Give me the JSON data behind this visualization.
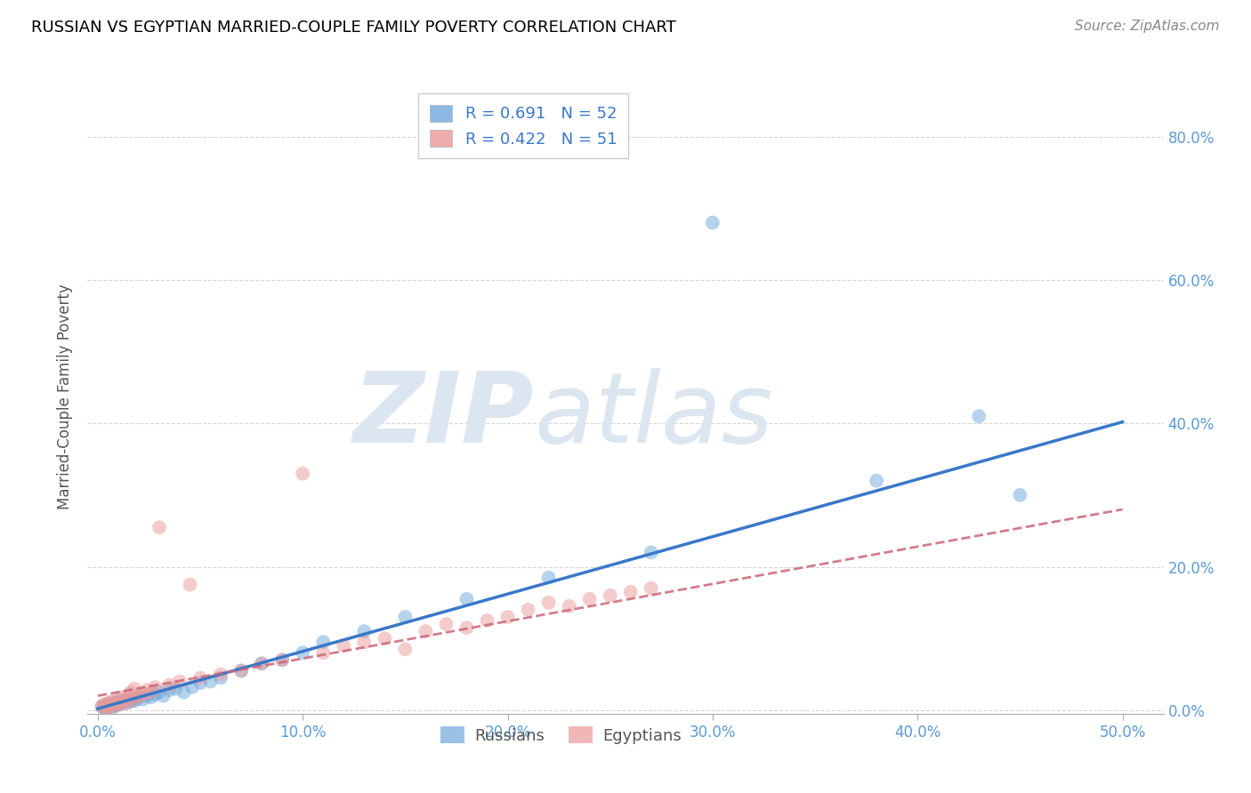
{
  "title": "RUSSIAN VS EGYPTIAN MARRIED-COUPLE FAMILY POVERTY CORRELATION CHART",
  "source": "Source: ZipAtlas.com",
  "ylabel": "Married-Couple Family Poverty",
  "xlabel_ticks": [
    "0.0%",
    "10.0%",
    "20.0%",
    "30.0%",
    "40.0%",
    "50.0%"
  ],
  "xlabel_vals": [
    0.0,
    0.1,
    0.2,
    0.3,
    0.4,
    0.5
  ],
  "ylabel_ticks": [
    "0.0%",
    "20.0%",
    "40.0%",
    "60.0%",
    "80.0%"
  ],
  "ylabel_vals": [
    0.0,
    0.2,
    0.4,
    0.6,
    0.8
  ],
  "xlim": [
    -0.005,
    0.52
  ],
  "ylim": [
    -0.005,
    0.88
  ],
  "russian_R": 0.691,
  "russian_N": 52,
  "egyptian_R": 0.422,
  "egyptian_N": 51,
  "russian_color": "#6fa8dc",
  "egyptian_color": "#ea9999",
  "russian_line_color": "#3a78c9",
  "egyptian_line_color": "#cc6677",
  "watermark_ZIP": "ZIP",
  "watermark_atlas": "atlas",
  "watermark_color": "#dce6f0",
  "background_color": "#ffffff",
  "grid_color": "#cccccc",
  "title_color": "#000000",
  "axis_label_color": "#555555",
  "tick_label_color": "#5b9bd5",
  "source_color": "#888888",
  "legend_russian_label": "R = 0.691   N = 52",
  "legend_egyptian_label": "R = 0.422   N = 51",
  "russians_label": "Russians",
  "egyptians_label": "Egyptians",
  "russian_slope": 0.8,
  "russian_intercept": 0.002,
  "egyptian_slope": 0.52,
  "egyptian_intercept": 0.02,
  "rus_x": [
    0.002,
    0.003,
    0.004,
    0.004,
    0.005,
    0.005,
    0.006,
    0.006,
    0.007,
    0.007,
    0.008,
    0.008,
    0.009,
    0.01,
    0.01,
    0.011,
    0.012,
    0.013,
    0.014,
    0.015,
    0.016,
    0.017,
    0.018,
    0.019,
    0.02,
    0.022,
    0.024,
    0.026,
    0.028,
    0.03,
    0.032,
    0.035,
    0.038,
    0.042,
    0.046,
    0.05,
    0.055,
    0.06,
    0.07,
    0.08,
    0.09,
    0.1,
    0.11,
    0.13,
    0.15,
    0.18,
    0.22,
    0.27,
    0.3,
    0.38,
    0.43,
    0.45
  ],
  "rus_y": [
    0.005,
    0.003,
    0.006,
    0.002,
    0.007,
    0.004,
    0.005,
    0.008,
    0.006,
    0.009,
    0.005,
    0.007,
    0.01,
    0.008,
    0.012,
    0.009,
    0.011,
    0.013,
    0.01,
    0.014,
    0.012,
    0.015,
    0.013,
    0.016,
    0.018,
    0.015,
    0.02,
    0.018,
    0.022,
    0.025,
    0.02,
    0.028,
    0.03,
    0.025,
    0.032,
    0.038,
    0.04,
    0.045,
    0.055,
    0.065,
    0.07,
    0.08,
    0.095,
    0.11,
    0.13,
    0.155,
    0.185,
    0.22,
    0.68,
    0.32,
    0.41,
    0.3
  ],
  "egy_x": [
    0.002,
    0.003,
    0.004,
    0.004,
    0.005,
    0.005,
    0.006,
    0.007,
    0.008,
    0.009,
    0.01,
    0.011,
    0.012,
    0.013,
    0.014,
    0.015,
    0.016,
    0.017,
    0.018,
    0.02,
    0.022,
    0.024,
    0.026,
    0.028,
    0.03,
    0.035,
    0.04,
    0.045,
    0.05,
    0.06,
    0.07,
    0.08,
    0.09,
    0.1,
    0.11,
    0.12,
    0.13,
    0.14,
    0.15,
    0.16,
    0.17,
    0.18,
    0.19,
    0.2,
    0.21,
    0.22,
    0.23,
    0.24,
    0.25,
    0.26,
    0.27
  ],
  "egy_y": [
    0.005,
    0.008,
    0.003,
    0.006,
    0.01,
    0.004,
    0.007,
    0.012,
    0.005,
    0.009,
    0.015,
    0.008,
    0.018,
    0.012,
    0.01,
    0.02,
    0.025,
    0.015,
    0.03,
    0.018,
    0.022,
    0.028,
    0.025,
    0.032,
    0.255,
    0.035,
    0.04,
    0.175,
    0.045,
    0.05,
    0.055,
    0.065,
    0.07,
    0.33,
    0.08,
    0.09,
    0.095,
    0.1,
    0.085,
    0.11,
    0.12,
    0.115,
    0.125,
    0.13,
    0.14,
    0.15,
    0.145,
    0.155,
    0.16,
    0.165,
    0.17
  ]
}
